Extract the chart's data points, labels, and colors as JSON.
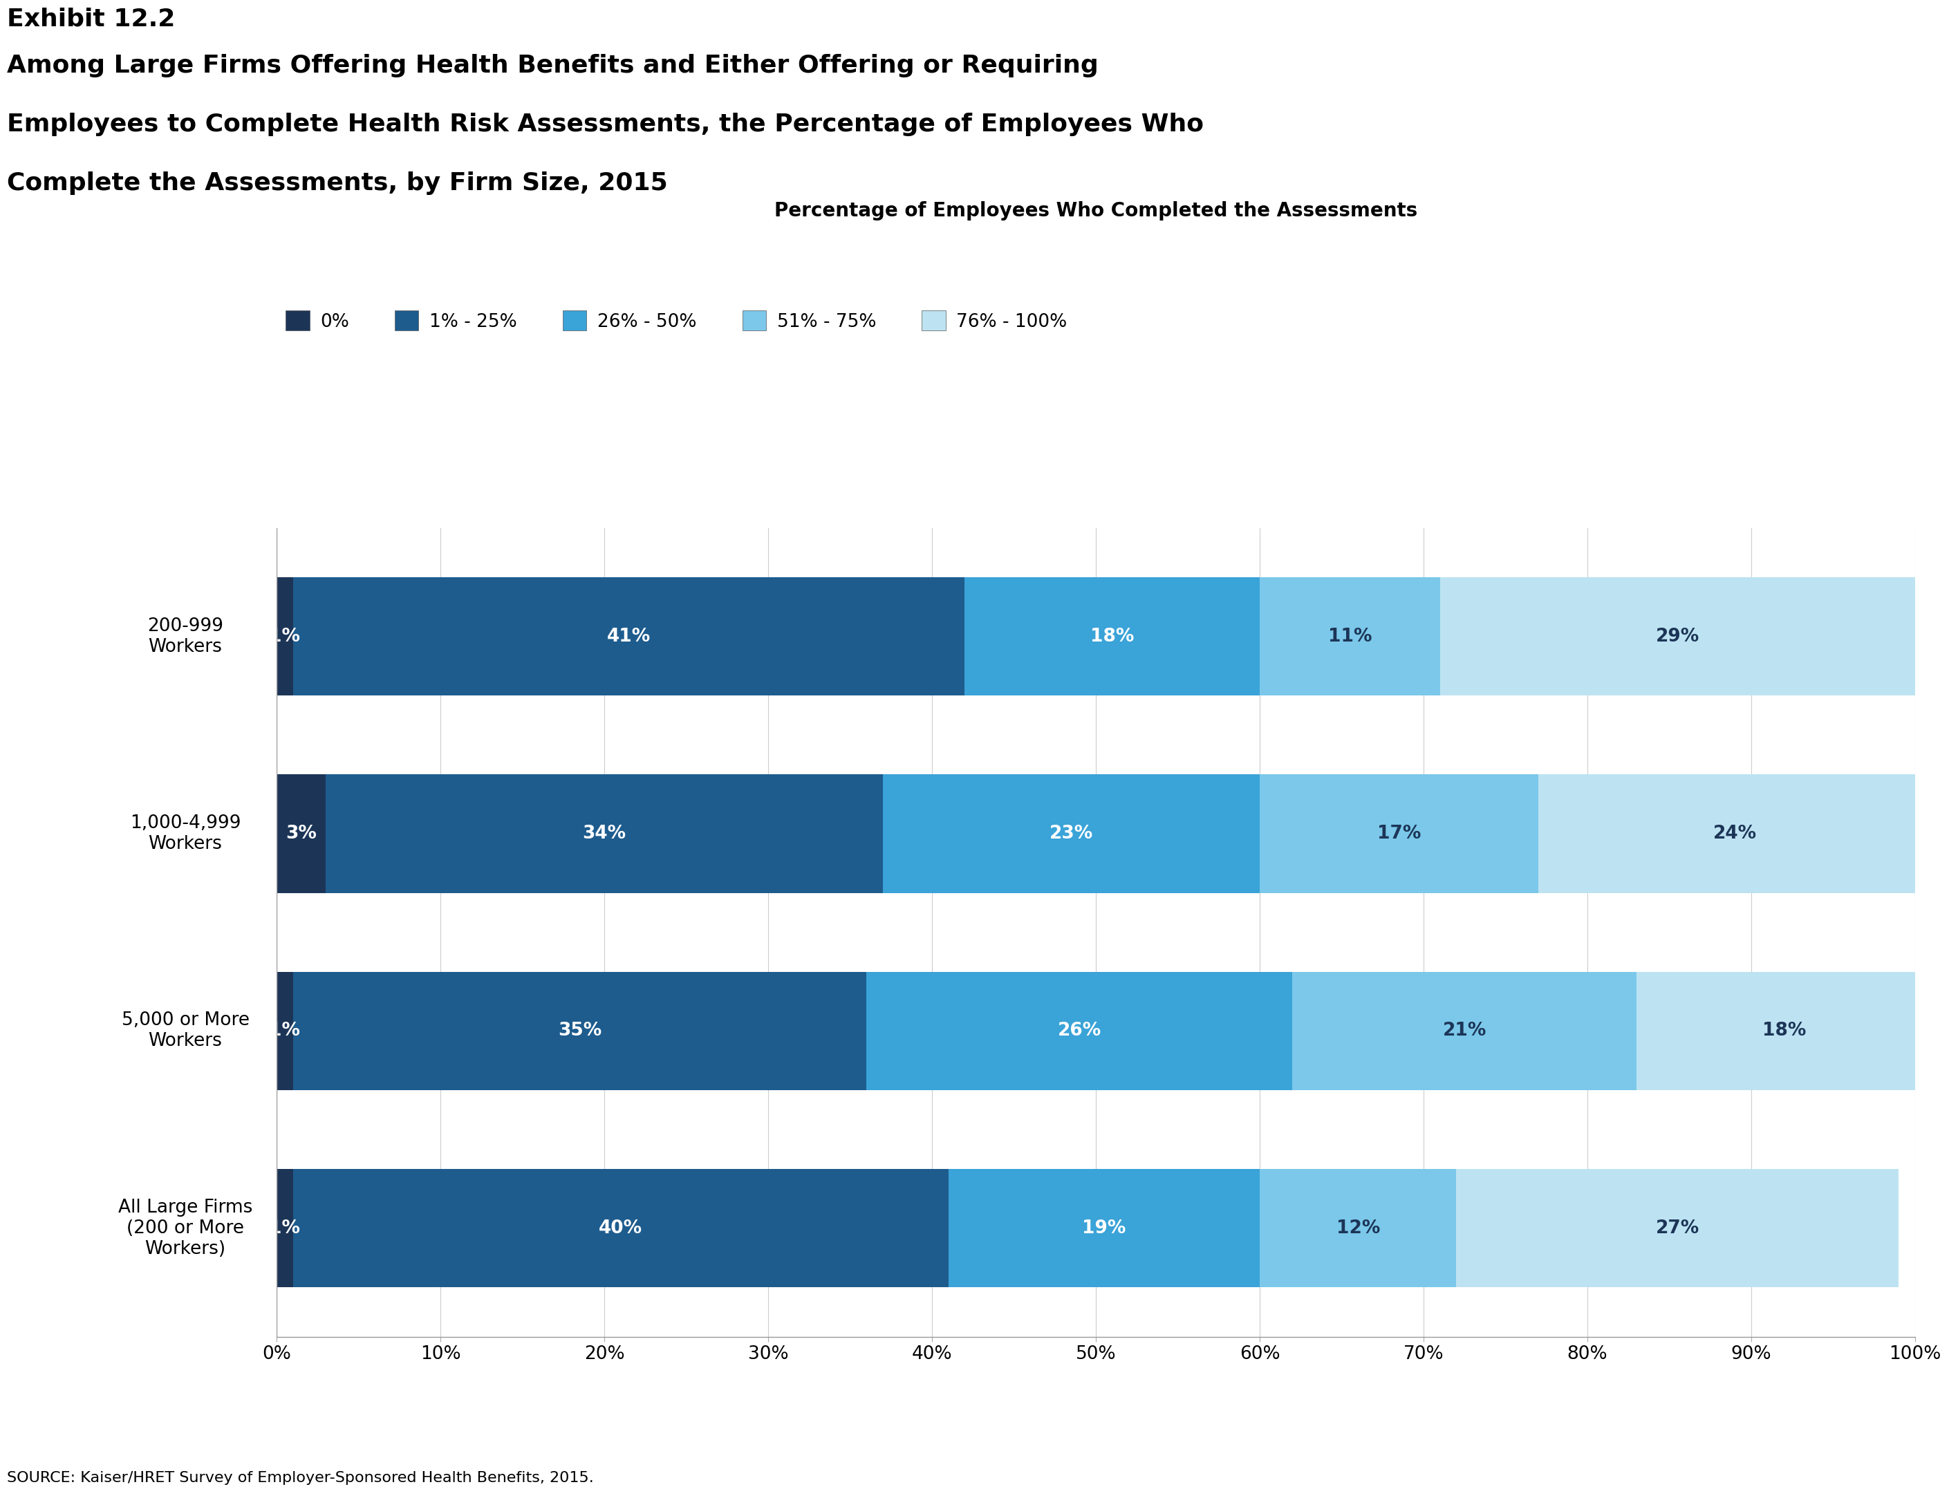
{
  "exhibit_label": "Exhibit 12.2",
  "title_lines": [
    "Among Large Firms Offering Health Benefits and Either Offering or Requiring",
    "Employees to Complete Health Risk Assessments, the Percentage of Employees Who",
    "Complete the Assessments, by Firm Size, 2015"
  ],
  "chart_title": "Percentage of Employees Who Completed the Assessments",
  "source": "SOURCE: Kaiser/HRET Survey of Employer-Sponsored Health Benefits, 2015.",
  "categories": [
    "200-999\nWorkers",
    "1,000-4,999\nWorkers",
    "5,000 or More\nWorkers",
    "All Large Firms\n(200 or More\nWorkers)"
  ],
  "series": [
    {
      "label": "0%",
      "values": [
        1,
        3,
        1,
        1
      ],
      "color": "#1c3557"
    },
    {
      "label": "1% - 25%",
      "values": [
        41,
        34,
        35,
        40
      ],
      "color": "#1e5c8e"
    },
    {
      "label": "26% - 50%",
      "values": [
        18,
        23,
        26,
        19
      ],
      "color": "#3aa3d8"
    },
    {
      "label": "51% - 75%",
      "values": [
        11,
        17,
        21,
        12
      ],
      "color": "#7bc8ea"
    },
    {
      "label": "76% - 100%",
      "values": [
        29,
        24,
        18,
        27
      ],
      "color": "#bde3f2"
    }
  ],
  "xticks": [
    0,
    10,
    20,
    30,
    40,
    50,
    60,
    70,
    80,
    90,
    100
  ],
  "xlim": [
    0,
    100
  ],
  "background_color": "#ffffff",
  "bar_height": 0.6,
  "title_fontsize": 26,
  "exhibit_fontsize": 26,
  "chart_title_fontsize": 20,
  "axis_label_fontsize": 19,
  "bar_label_fontsize": 19,
  "legend_fontsize": 19,
  "source_fontsize": 16,
  "kff_box_color": "#1c3557"
}
